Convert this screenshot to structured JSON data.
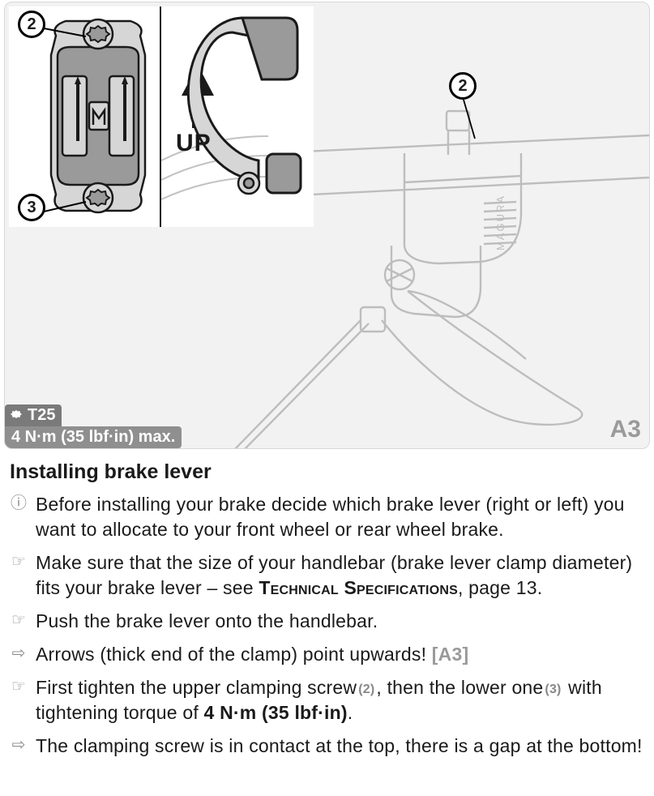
{
  "figure": {
    "id_label": "A3",
    "panel_bg": "#f2f2f2",
    "panel_border": "#d8d8d8",
    "up_label": "UP",
    "callouts": {
      "top_left": "2",
      "bottom_left": "3",
      "right_panel": "2"
    },
    "spec": {
      "tool": "T25",
      "torque": "4 N·m (35 lbf·in) max."
    },
    "line_art_stroke": "#bdbdbd",
    "detail_stroke": "#1a1a1a",
    "detail_fill_mid": "#9a9a9a",
    "detail_fill_light": "#d6d6d6"
  },
  "instructions": {
    "heading": "Installing brake lever",
    "steps": [
      {
        "icon": "info",
        "text": "Before installing your brake decide which brake lever (right or left) you want to allocate to your front wheel or rear wheel brake."
      },
      {
        "icon": "hand",
        "text_parts": [
          "Make sure that the size of your handlebar (brake lever clamp diameter) fits your brake lever – see ",
          {
            "sc": "Technical Specifications"
          },
          ", page 13."
        ]
      },
      {
        "icon": "hand",
        "text": "Push the brake lever onto the handlebar."
      },
      {
        "icon": "arrow",
        "text_parts": [
          "Arrows (thick end of the clamp) point upwards! ",
          {
            "figref": "[A3]"
          }
        ]
      },
      {
        "icon": "hand",
        "text_parts": [
          "First tighten the upper clamping screw",
          {
            "num": "(2)"
          },
          ", then the lower one",
          {
            "num": "(3)"
          },
          " with tightening torque of ",
          {
            "b": "4 N·m (35 lbf·in)"
          },
          "."
        ]
      },
      {
        "icon": "arrow",
        "text": "The clamping screw is in contact at the top, there is a gap at the bottom!"
      }
    ],
    "bullet_glyphs": {
      "info": "ⓘ",
      "hand": "☞",
      "arrow": "⇨"
    },
    "figref_color": "#9a9a9a",
    "bullet_color": "#8a8a8a",
    "font_size_body": 23,
    "font_size_heading": 25
  }
}
